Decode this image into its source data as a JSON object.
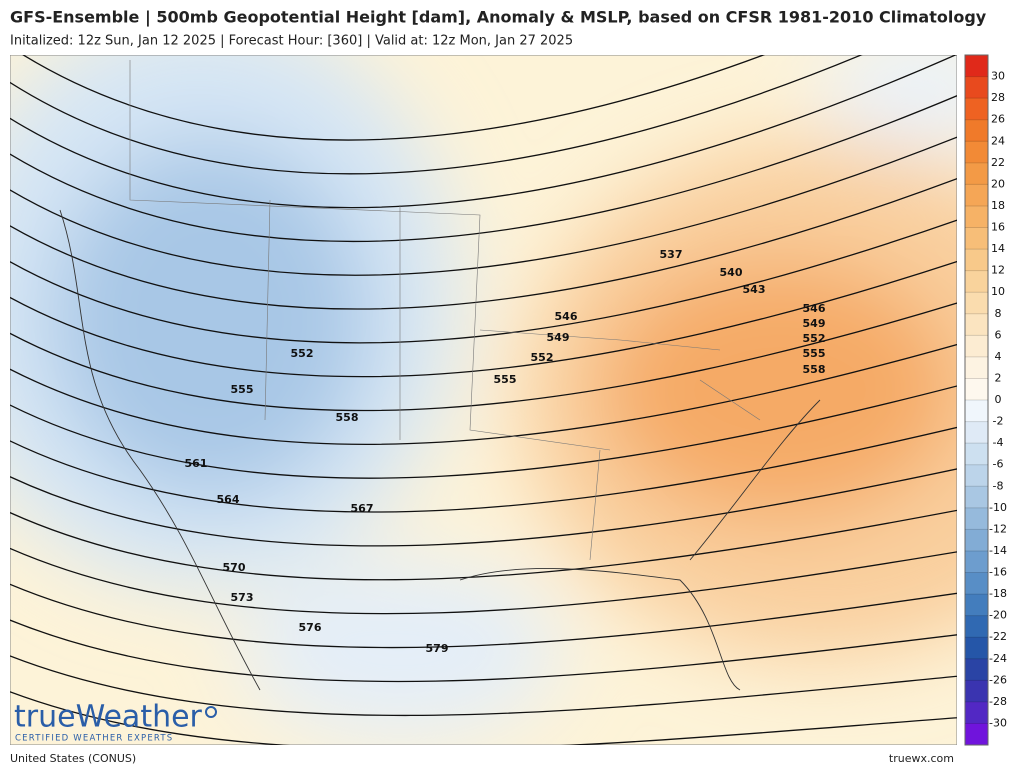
{
  "header": {
    "title": "GFS-Ensemble | 500mb Geopotential Height [dam], Anomaly & MSLP, based on CFSR 1981-2010 Climatology",
    "subtitle": "Initalized: 12z Sun, Jan 12 2025  |  Forecast Hour: [360]  |  Valid at: 12z Mon, Jan 27 2025"
  },
  "map": {
    "contour_labels": [
      "537",
      "540",
      "543",
      "546",
      "549",
      "552",
      "555",
      "558",
      "546",
      "549",
      "552",
      "555",
      "552",
      "555",
      "558",
      "561",
      "564",
      "567",
      "570",
      "573",
      "576",
      "579"
    ]
  },
  "colorbar": {
    "ticks": [
      30,
      28,
      26,
      24,
      22,
      20,
      18,
      16,
      14,
      12,
      10,
      8,
      6,
      4,
      2,
      0,
      -2,
      -4,
      -6,
      -8,
      -10,
      -12,
      -14,
      -16,
      -18,
      -20,
      -22,
      -24,
      -26,
      -28,
      -30
    ],
    "colors": [
      "#e0291a",
      "#e84a1e",
      "#ee6222",
      "#f07a2a",
      "#f28a36",
      "#f39a46",
      "#f5a656",
      "#f6b266",
      "#f7be78",
      "#f8c98a",
      "#f9d39c",
      "#fadcae",
      "#fbe4c0",
      "#fcecd2",
      "#fdf3e2",
      "#fef8ee",
      "#f0f6fc",
      "#dfeaf6",
      "#cde0f0",
      "#bcd4ea",
      "#a9c7e3",
      "#96badc",
      "#82acd5",
      "#6d9dce",
      "#588ec6",
      "#437dbd",
      "#3069b2",
      "#2556a8",
      "#2a44a5",
      "#3a34b0",
      "#5228c4",
      "#7014dc"
    ]
  },
  "logo": {
    "name": "trueWeather",
    "tagline": "CERTIFIED WEATHER EXPERTS"
  },
  "footer": {
    "region": "United States (CONUS)",
    "site": "truewx.com"
  }
}
